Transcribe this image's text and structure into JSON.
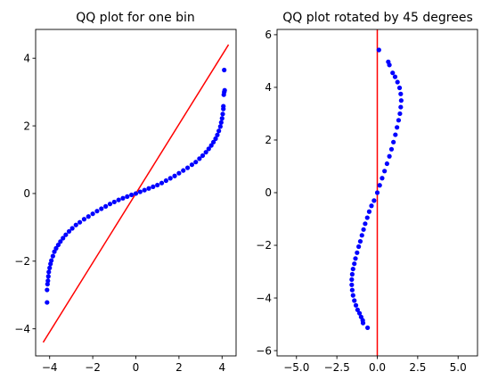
{
  "chart_data": [
    {
      "type": "scatter",
      "title": "QQ plot for one bin",
      "xlabel": "",
      "ylabel": "",
      "xlim": [
        -4.65,
        4.65
      ],
      "ylim": [
        -4.8,
        4.85
      ],
      "xticks": [
        -4,
        -2,
        0,
        2,
        4
      ],
      "yticks": [
        -4,
        -2,
        0,
        2,
        4
      ],
      "tick_labels_x": [
        "−4",
        "−2",
        "0",
        "2",
        "4"
      ],
      "tick_labels_y": [
        "−4",
        "−2",
        "0",
        "2",
        "4"
      ],
      "grid": false,
      "line": {
        "x": [
          -4.3,
          4.3
        ],
        "y": [
          -4.4,
          4.4
        ],
        "color": "#ff0000"
      },
      "points": [
        [
          -4.12,
          -3.22
        ],
        [
          -4.12,
          -2.85
        ],
        [
          -4.1,
          -2.68
        ],
        [
          -4.08,
          -2.58
        ],
        [
          -4.06,
          -2.45
        ],
        [
          -4.04,
          -2.32
        ],
        [
          -4.0,
          -2.2
        ],
        [
          -3.96,
          -2.08
        ],
        [
          -3.92,
          -1.98
        ],
        [
          -3.85,
          -1.85
        ],
        [
          -3.78,
          -1.72
        ],
        [
          -3.7,
          -1.62
        ],
        [
          -3.6,
          -1.52
        ],
        [
          -3.5,
          -1.42
        ],
        [
          -3.38,
          -1.32
        ],
        [
          -3.25,
          -1.22
        ],
        [
          -3.1,
          -1.12
        ],
        [
          -2.95,
          -1.03
        ],
        [
          -2.78,
          -0.93
        ],
        [
          -2.6,
          -0.85
        ],
        [
          -2.4,
          -0.76
        ],
        [
          -2.2,
          -0.68
        ],
        [
          -2.0,
          -0.6
        ],
        [
          -1.8,
          -0.52
        ],
        [
          -1.6,
          -0.45
        ],
        [
          -1.4,
          -0.38
        ],
        [
          -1.2,
          -0.31
        ],
        [
          -1.0,
          -0.25
        ],
        [
          -0.8,
          -0.19
        ],
        [
          -0.6,
          -0.14
        ],
        [
          -0.4,
          -0.09
        ],
        [
          -0.2,
          -0.04
        ],
        [
          0.0,
          0.0
        ],
        [
          0.2,
          0.05
        ],
        [
          0.4,
          0.1
        ],
        [
          0.6,
          0.15
        ],
        [
          0.8,
          0.2
        ],
        [
          1.0,
          0.25
        ],
        [
          1.2,
          0.31
        ],
        [
          1.4,
          0.38
        ],
        [
          1.6,
          0.45
        ],
        [
          1.8,
          0.52
        ],
        [
          2.0,
          0.6
        ],
        [
          2.2,
          0.68
        ],
        [
          2.4,
          0.76
        ],
        [
          2.6,
          0.85
        ],
        [
          2.78,
          0.93
        ],
        [
          2.95,
          1.03
        ],
        [
          3.1,
          1.12
        ],
        [
          3.25,
          1.22
        ],
        [
          3.38,
          1.32
        ],
        [
          3.5,
          1.42
        ],
        [
          3.6,
          1.52
        ],
        [
          3.7,
          1.62
        ],
        [
          3.78,
          1.73
        ],
        [
          3.85,
          1.85
        ],
        [
          3.92,
          1.98
        ],
        [
          3.96,
          2.1
        ],
        [
          4.0,
          2.22
        ],
        [
          4.03,
          2.35
        ],
        [
          4.06,
          2.5
        ],
        [
          4.06,
          2.58
        ],
        [
          4.08,
          2.92
        ],
        [
          4.1,
          3.0
        ],
        [
          4.12,
          3.05
        ],
        [
          4.1,
          3.65
        ]
      ],
      "point_color": "#0000ff"
    },
    {
      "type": "scatter",
      "title": "QQ plot rotated by 45 degrees",
      "xlabel": "",
      "ylabel": "",
      "xlim": [
        -6.2,
        6.2
      ],
      "ylim": [
        -6.2,
        6.2
      ],
      "xticks": [
        -5.0,
        -2.5,
        0.0,
        2.5,
        5.0
      ],
      "yticks": [
        -6,
        -4,
        -2,
        0,
        2,
        4,
        6
      ],
      "tick_labels_x": [
        "−5.0",
        "−2.5",
        "0.0",
        "2.5",
        "5.0"
      ],
      "tick_labels_y": [
        "−6",
        "−4",
        "−2",
        "0",
        "2",
        "4",
        "6"
      ],
      "grid": false,
      "vline": {
        "x": 0,
        "color": "#ff0000"
      },
      "points": [
        [
          -0.6,
          -5.13
        ],
        [
          -0.88,
          -4.95
        ],
        [
          -0.9,
          -4.85
        ],
        [
          -1.0,
          -4.72
        ],
        [
          -1.1,
          -4.58
        ],
        [
          -1.22,
          -4.45
        ],
        [
          -1.32,
          -4.28
        ],
        [
          -1.42,
          -4.1
        ],
        [
          -1.5,
          -3.9
        ],
        [
          -1.55,
          -3.7
        ],
        [
          -1.58,
          -3.5
        ],
        [
          -1.58,
          -3.3
        ],
        [
          -1.55,
          -3.1
        ],
        [
          -1.5,
          -2.9
        ],
        [
          -1.42,
          -2.7
        ],
        [
          -1.35,
          -2.5
        ],
        [
          -1.25,
          -2.28
        ],
        [
          -1.15,
          -2.05
        ],
        [
          -1.05,
          -1.85
        ],
        [
          -0.95,
          -1.62
        ],
        [
          -0.85,
          -1.4
        ],
        [
          -0.75,
          -1.18
        ],
        [
          -0.62,
          -0.95
        ],
        [
          -0.5,
          -0.72
        ],
        [
          -0.36,
          -0.5
        ],
        [
          -0.2,
          -0.3
        ],
        [
          0.0,
          0.0
        ],
        [
          0.15,
          0.28
        ],
        [
          0.3,
          0.55
        ],
        [
          0.45,
          0.82
        ],
        [
          0.6,
          1.1
        ],
        [
          0.75,
          1.38
        ],
        [
          0.88,
          1.65
        ],
        [
          1.0,
          1.92
        ],
        [
          1.12,
          2.2
        ],
        [
          1.22,
          2.48
        ],
        [
          1.32,
          2.75
        ],
        [
          1.4,
          3.0
        ],
        [
          1.45,
          3.25
        ],
        [
          1.48,
          3.5
        ],
        [
          1.45,
          3.75
        ],
        [
          1.38,
          3.98
        ],
        [
          1.25,
          4.2
        ],
        [
          1.1,
          4.4
        ],
        [
          0.95,
          4.55
        ],
        [
          0.75,
          4.85
        ],
        [
          0.68,
          4.97
        ],
        [
          0.1,
          5.42
        ]
      ],
      "point_color": "#0000ff"
    }
  ]
}
